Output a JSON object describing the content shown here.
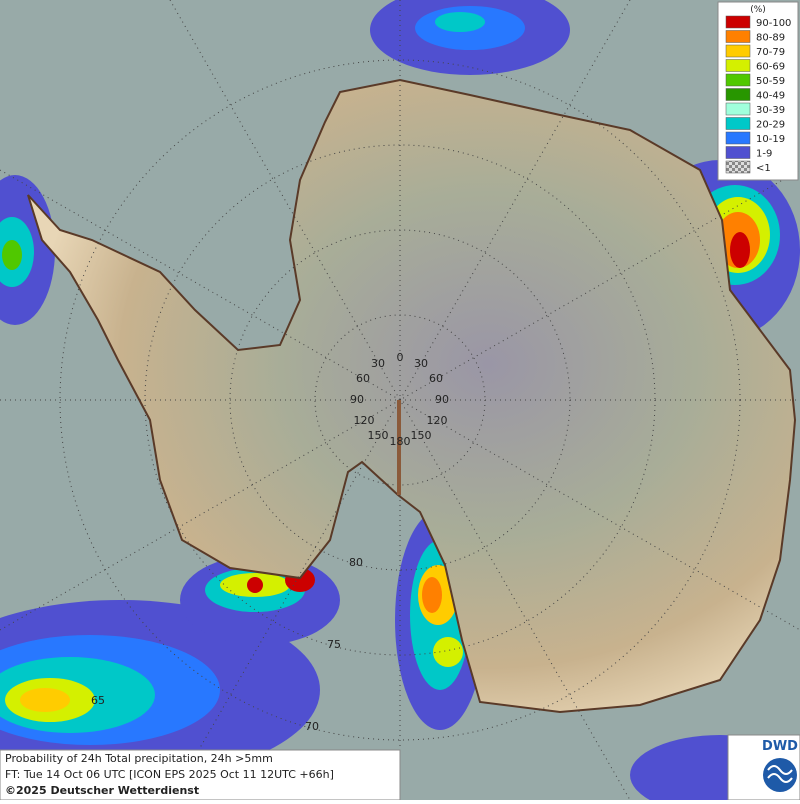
{
  "legend": {
    "title": "(%)",
    "items": [
      {
        "label": "90-100",
        "color": "#cc0000"
      },
      {
        "label": "80-89",
        "color": "#ff8000"
      },
      {
        "label": "70-79",
        "color": "#ffcc00"
      },
      {
        "label": "60-69",
        "color": "#d4f000"
      },
      {
        "label": "50-59",
        "color": "#50c800"
      },
      {
        "label": "40-49",
        "color": "#289600"
      },
      {
        "label": "30-39",
        "color": "#a0ffdc"
      },
      {
        "label": "20-29",
        "color": "#00c8c8"
      },
      {
        "label": "10-19",
        "color": "#2878ff"
      },
      {
        "label": "1-9",
        "color": "#5050d0"
      },
      {
        "label": "<1",
        "color": "#b4b4b4"
      }
    ]
  },
  "grid_labels": {
    "longitudes": [
      "0",
      "30",
      "30",
      "60",
      "60",
      "90",
      "90",
      "120",
      "120",
      "150",
      "150",
      "180"
    ],
    "latitudes": [
      "80",
      "75",
      "70",
      "65"
    ]
  },
  "caption": {
    "line1": "Probability of 24h Total precipitation, 24h >5mm",
    "line2": "FT: Tue 14 Oct 06 UTC [ICON EPS 2025 Oct 11 12UTC +66h]",
    "line3": "©2025 Deutscher Wetterdienst"
  },
  "logo": "DWD"
}
